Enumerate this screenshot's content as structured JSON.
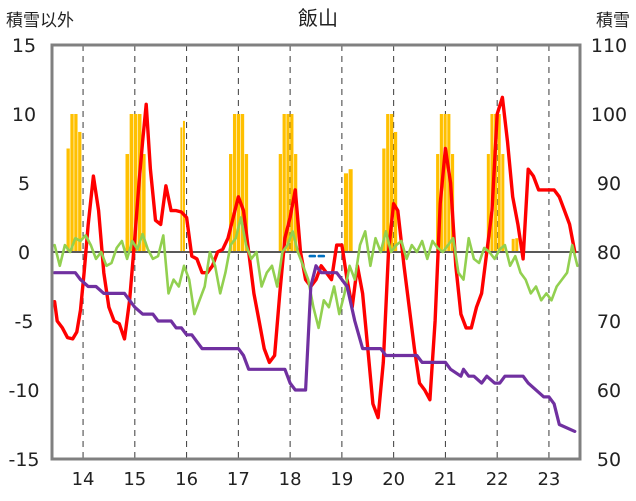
{
  "chart_data": {
    "type": "line",
    "title": "飯山",
    "y_left_label": "積雪以外",
    "y_right_label": "積雪",
    "y_left_range": [
      -15,
      15
    ],
    "y_left_ticks": [
      "15",
      "10",
      "5",
      "0",
      "-5",
      "-10",
      "-15"
    ],
    "y_right_range": [
      50,
      110
    ],
    "y_right_ticks": [
      "110",
      "100",
      "90",
      "80",
      "70",
      "60",
      "50"
    ],
    "x_range": [
      13.4,
      23.6
    ],
    "x_ticks": [
      "14",
      "15",
      "16",
      "17",
      "18",
      "19",
      "20",
      "21",
      "22",
      "23"
    ],
    "grid": "dashed-vertical",
    "colors": {
      "red": "#ff0000",
      "green": "#92d050",
      "purple": "#7030a0",
      "bars": "#ffc000",
      "blue": "#0070c0",
      "frame": "#808080",
      "zero": "#595959"
    },
    "bar_groups": [
      {
        "start": 13.68,
        "end": 13.98,
        "left_peak": 10.0
      },
      {
        "start": 14.82,
        "end": 15.22,
        "left_peak": 10.0
      },
      {
        "start": 15.88,
        "end": 15.98,
        "left_peak": 9.5
      },
      {
        "start": 16.82,
        "end": 17.2,
        "left_peak": 10.0
      },
      {
        "start": 17.78,
        "end": 18.15,
        "left_peak": 10.0
      },
      {
        "start": 19.04,
        "end": 19.22,
        "left_peak": 6.0
      },
      {
        "start": 19.78,
        "end": 20.08,
        "left_peak": 10.0
      },
      {
        "start": 20.82,
        "end": 21.18,
        "left_peak": 10.0
      },
      {
        "start": 21.8,
        "end": 22.15,
        "left_peak": 10.0
      },
      {
        "start": 22.28,
        "end": 22.42,
        "left_peak": 1.0
      }
    ],
    "series": [
      {
        "color": "#ff0000",
        "width": 3.4,
        "x": [
          13.45,
          13.5,
          13.6,
          13.7,
          13.8,
          13.88,
          13.95,
          14.02,
          14.1,
          14.2,
          14.3,
          14.4,
          14.5,
          14.6,
          14.7,
          14.8,
          14.9,
          15.0,
          15.08,
          15.15,
          15.22,
          15.3,
          15.4,
          15.5,
          15.6,
          15.7,
          15.8,
          15.9,
          16.0,
          16.1,
          16.2,
          16.3,
          16.4,
          16.5,
          16.6,
          16.7,
          16.8,
          16.9,
          17.0,
          17.1,
          17.2,
          17.3,
          17.4,
          17.5,
          17.6,
          17.7,
          17.8,
          17.9,
          18.0,
          18.1,
          18.2,
          18.3,
          18.4,
          18.5,
          18.6,
          18.7,
          18.8,
          18.9,
          19.0,
          19.1,
          19.2,
          19.3,
          19.4,
          19.5,
          19.6,
          19.7,
          19.8,
          19.9,
          20.0,
          20.08,
          20.2,
          20.3,
          20.4,
          20.5,
          20.6,
          20.7,
          20.8,
          20.9,
          21.0,
          21.1,
          21.2,
          21.3,
          21.4,
          21.5,
          21.6,
          21.7,
          21.8,
          21.9,
          22.0,
          22.1,
          22.2,
          22.3,
          22.4,
          22.5,
          22.6,
          22.7,
          22.8,
          22.9,
          23.0,
          23.1,
          23.2,
          23.3,
          23.4,
          23.5
        ],
        "y": [
          -3.6,
          -5.0,
          -5.5,
          -6.2,
          -6.3,
          -5.8,
          -4.2,
          -1.5,
          2.0,
          5.5,
          3.0,
          -1.5,
          -4.0,
          -5.0,
          -5.2,
          -6.3,
          -3.5,
          1.0,
          5.0,
          8.0,
          10.7,
          6.0,
          2.3,
          2.0,
          4.8,
          3.0,
          3.0,
          2.9,
          2.5,
          -0.3,
          -0.5,
          -1.5,
          -1.5,
          -1.0,
          0.0,
          0.2,
          1.0,
          2.5,
          4.0,
          3.0,
          0.0,
          -3.0,
          -5.0,
          -7.0,
          -8.0,
          -7.5,
          -3.0,
          1.0,
          2.5,
          4.5,
          0.0,
          -2.0,
          -2.5,
          -2.0,
          -1.0,
          -1.5,
          -2.0,
          0.5,
          0.5,
          -2.0,
          -4.0,
          -1.0,
          -3.0,
          -7.0,
          -11.0,
          -12.0,
          -8.0,
          0.0,
          3.5,
          3.0,
          -1.0,
          -4.0,
          -7.0,
          -9.5,
          -10.0,
          -10.7,
          -5.0,
          3.5,
          7.5,
          5.0,
          -1.0,
          -4.5,
          -5.5,
          -5.5,
          -4.0,
          -3.0,
          0.0,
          3.0,
          10.0,
          11.2,
          8.0,
          4.0,
          2.0,
          -0.5,
          6.0,
          5.5,
          4.5,
          4.5,
          4.5,
          4.5,
          4.0,
          3.0,
          2.0,
          0.0
        ]
      },
      {
        "color": "#92d050",
        "width": 2.6,
        "x": [
          13.45,
          13.55,
          13.65,
          13.75,
          13.85,
          13.95,
          14.05,
          14.15,
          14.25,
          14.35,
          14.45,
          14.55,
          14.65,
          14.75,
          14.85,
          14.95,
          15.05,
          15.15,
          15.25,
          15.35,
          15.45,
          15.55,
          15.65,
          15.75,
          15.85,
          15.95,
          16.05,
          16.15,
          16.25,
          16.35,
          16.45,
          16.55,
          16.65,
          16.75,
          16.85,
          16.95,
          17.05,
          17.15,
          17.25,
          17.35,
          17.45,
          17.55,
          17.65,
          17.75,
          17.85,
          17.95,
          18.05,
          18.15,
          18.25,
          18.35,
          18.45,
          18.55,
          18.65,
          18.75,
          18.85,
          18.95,
          19.05,
          19.15,
          19.25,
          19.35,
          19.45,
          19.55,
          19.65,
          19.75,
          19.85,
          19.95,
          20.05,
          20.15,
          20.25,
          20.35,
          20.45,
          20.55,
          20.65,
          20.75,
          20.85,
          20.95,
          21.05,
          21.15,
          21.25,
          21.35,
          21.45,
          21.55,
          21.65,
          21.75,
          21.85,
          21.95,
          22.05,
          22.15,
          22.25,
          22.35,
          22.45,
          22.55,
          22.65,
          22.75,
          22.85,
          22.95,
          23.05,
          23.15,
          23.25,
          23.35,
          23.45,
          23.55
        ],
        "y": [
          0.5,
          -1.0,
          0.5,
          0.0,
          1.0,
          0.8,
          1.2,
          0.5,
          -0.5,
          0.0,
          -1.0,
          -0.8,
          0.3,
          0.8,
          -0.5,
          0.8,
          0.2,
          1.3,
          0.2,
          -0.5,
          -0.3,
          1.2,
          -3.0,
          -2.0,
          -2.5,
          -1.0,
          -2.0,
          -4.5,
          -3.5,
          -2.5,
          0.0,
          -1.0,
          -3.0,
          -1.5,
          0.5,
          1.0,
          2.5,
          0.5,
          -0.5,
          0.0,
          -2.5,
          -1.5,
          -1.0,
          -2.5,
          0.0,
          0.5,
          1.5,
          0.0,
          -1.0,
          -2.0,
          -4.0,
          -5.5,
          -3.5,
          -4.0,
          -2.5,
          -4.5,
          -3.0,
          -1.0,
          -2.0,
          0.5,
          1.5,
          -1.0,
          1.0,
          0.0,
          1.5,
          0.0,
          0.5,
          0.8,
          -0.5,
          0.5,
          0.0,
          0.8,
          -0.5,
          0.8,
          0.3,
          0.0,
          0.5,
          1.0,
          -1.5,
          -2.0,
          1.0,
          -0.5,
          -0.8,
          0.3,
          0.0,
          -0.5,
          0.2,
          0.5,
          -1.0,
          -0.3,
          -1.5,
          -2.0,
          -3.0,
          -2.5,
          -3.5,
          -3.0,
          -3.5,
          -2.5,
          -2.0,
          -1.5,
          0.5,
          -1.0
        ]
      },
      {
        "color": "#7030a0",
        "width": 3.2,
        "x": [
          13.45,
          13.85,
          13.95,
          14.1,
          14.25,
          14.4,
          14.8,
          14.9,
          15.0,
          15.15,
          15.35,
          15.45,
          15.7,
          15.8,
          15.9,
          16.0,
          16.1,
          16.2,
          16.3,
          16.4,
          17.0,
          17.1,
          17.2,
          17.4,
          17.9,
          17.95,
          18.0,
          18.1,
          18.3,
          18.4,
          18.5,
          18.6,
          18.9,
          19.0,
          19.1,
          19.25,
          19.4,
          19.75,
          19.85,
          20.45,
          20.55,
          21.0,
          21.1,
          21.3,
          21.35,
          21.45,
          21.55,
          21.7,
          21.8,
          21.95,
          22.05,
          22.15,
          22.5,
          22.6,
          22.9,
          23.0,
          23.1,
          23.2,
          23.5
        ],
        "y": [
          -1.5,
          -1.5,
          -2.0,
          -2.5,
          -2.5,
          -3.0,
          -3.0,
          -3.5,
          -4.0,
          -4.5,
          -4.5,
          -5.0,
          -5.0,
          -5.5,
          -5.5,
          -6.0,
          -6.0,
          -6.5,
          -7.0,
          -7.0,
          -7.0,
          -7.5,
          -8.5,
          -8.5,
          -8.5,
          -9.0,
          -9.5,
          -10.0,
          -10.0,
          -2.5,
          -1.0,
          -1.5,
          -1.5,
          -2.0,
          -2.5,
          -5.0,
          -7.0,
          -7.0,
          -7.5,
          -7.5,
          -8.0,
          -8.0,
          -8.5,
          -9.0,
          -8.5,
          -9.0,
          -9.0,
          -9.5,
          -9.0,
          -9.5,
          -9.5,
          -9.0,
          -9.0,
          -9.5,
          -10.5,
          -10.5,
          -11.0,
          -12.5,
          -13.0
        ]
      },
      {
        "color": "#0070c0",
        "width": 2.6,
        "dash": "5,4",
        "x": [
          18.38,
          18.7
        ],
        "y": [
          -0.3,
          -0.3
        ]
      }
    ]
  }
}
